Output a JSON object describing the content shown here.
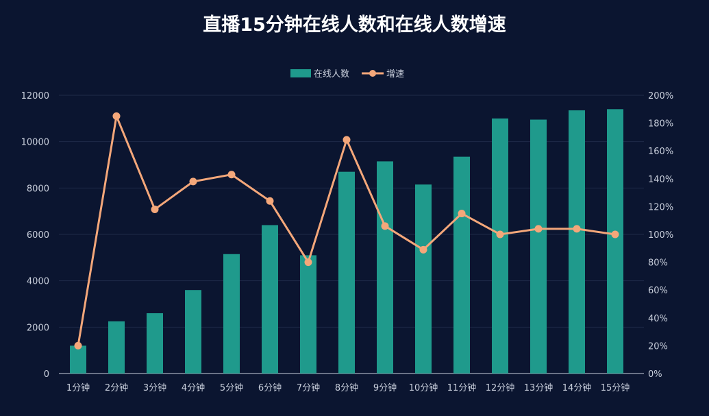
{
  "chart_data": {
    "type": "bar",
    "title": "直播15分钟在线人数和在线人数增速",
    "categories": [
      "1分钟",
      "2分钟",
      "3分钟",
      "4分钟",
      "5分钟",
      "6分钟",
      "7分钟",
      "8分钟",
      "9分钟",
      "10分钟",
      "11分钟",
      "12分钟",
      "13分钟",
      "14分钟",
      "15分钟"
    ],
    "series": [
      {
        "name": "在线人数",
        "type": "bar",
        "axis": "left",
        "color": "#1f9a8c",
        "values": [
          1200,
          2250,
          2600,
          3600,
          5150,
          6400,
          5100,
          8700,
          9150,
          8150,
          9350,
          11000,
          10950,
          11350,
          11400
        ]
      },
      {
        "name": "增速",
        "type": "line",
        "axis": "right",
        "color": "#f4a77a",
        "values": [
          20,
          185,
          118,
          138,
          143,
          124,
          80,
          168,
          106,
          89,
          115,
          100,
          104,
          104,
          100
        ]
      }
    ],
    "y_left": {
      "range": [
        0,
        12000
      ],
      "ticks": [
        "0",
        "2000",
        "4000",
        "6000",
        "8000",
        "10000",
        "12000"
      ]
    },
    "y_right": {
      "range": [
        0,
        200
      ],
      "unit": "%",
      "ticks": [
        "0%",
        "20%",
        "40%",
        "60%",
        "80%",
        "100%",
        "120%",
        "140%",
        "160%",
        "180%",
        "200%"
      ]
    },
    "grid": true,
    "legend": "top-center"
  }
}
